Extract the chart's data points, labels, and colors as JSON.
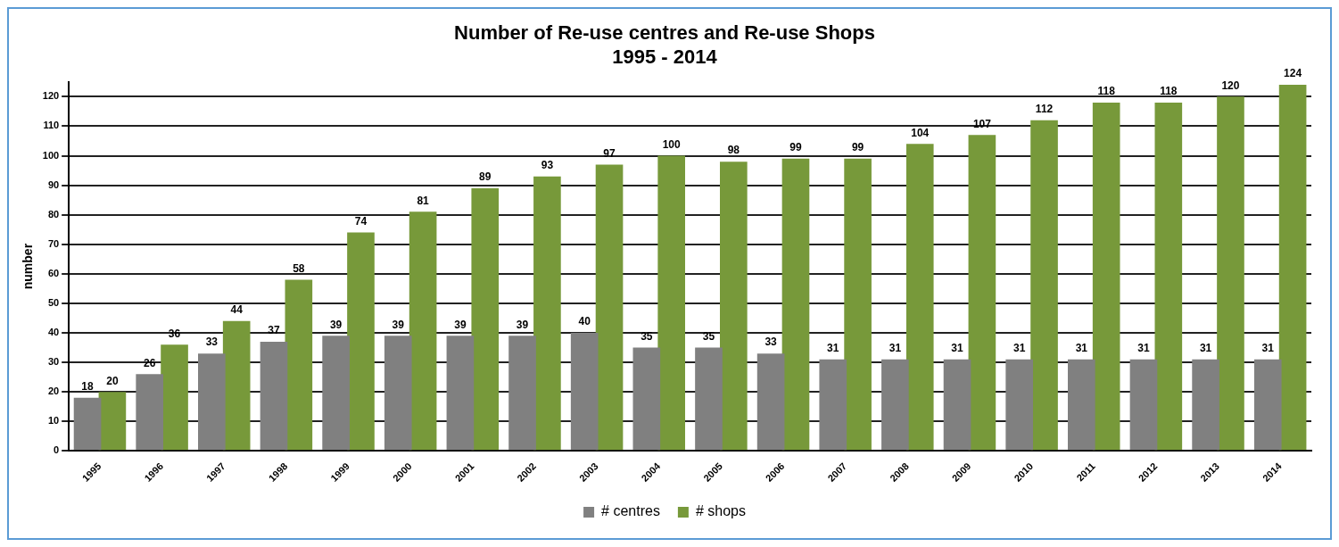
{
  "chart_data": {
    "type": "bar",
    "title": "Number of Re-use centres and Re-use Shops\n1995 - 2014",
    "ylabel": "number",
    "categories": [
      "1995",
      "1996",
      "1997",
      "1998",
      "1999",
      "2000",
      "2001",
      "2002",
      "2003",
      "2004",
      "2005",
      "2006",
      "2007",
      "2008",
      "2009",
      "2010",
      "2011",
      "2012",
      "2013",
      "2014"
    ],
    "series": [
      {
        "name": "# centres",
        "color": "#808080",
        "values": [
          18,
          26,
          33,
          37,
          39,
          39,
          39,
          39,
          40,
          35,
          35,
          33,
          31,
          31,
          31,
          31,
          31,
          31,
          31,
          31
        ]
      },
      {
        "name": "# shops",
        "color": "#77993a",
        "values": [
          20,
          36,
          44,
          58,
          74,
          81,
          89,
          93,
          97,
          100,
          98,
          99,
          99,
          104,
          107,
          112,
          118,
          118,
          120,
          124
        ]
      }
    ],
    "ylim": [
      0,
      125
    ],
    "yticks": [
      0,
      10,
      20,
      30,
      40,
      50,
      60,
      70,
      80,
      90,
      100,
      110,
      120
    ],
    "grid": "y",
    "legend": "bottom",
    "data_labels": true
  }
}
